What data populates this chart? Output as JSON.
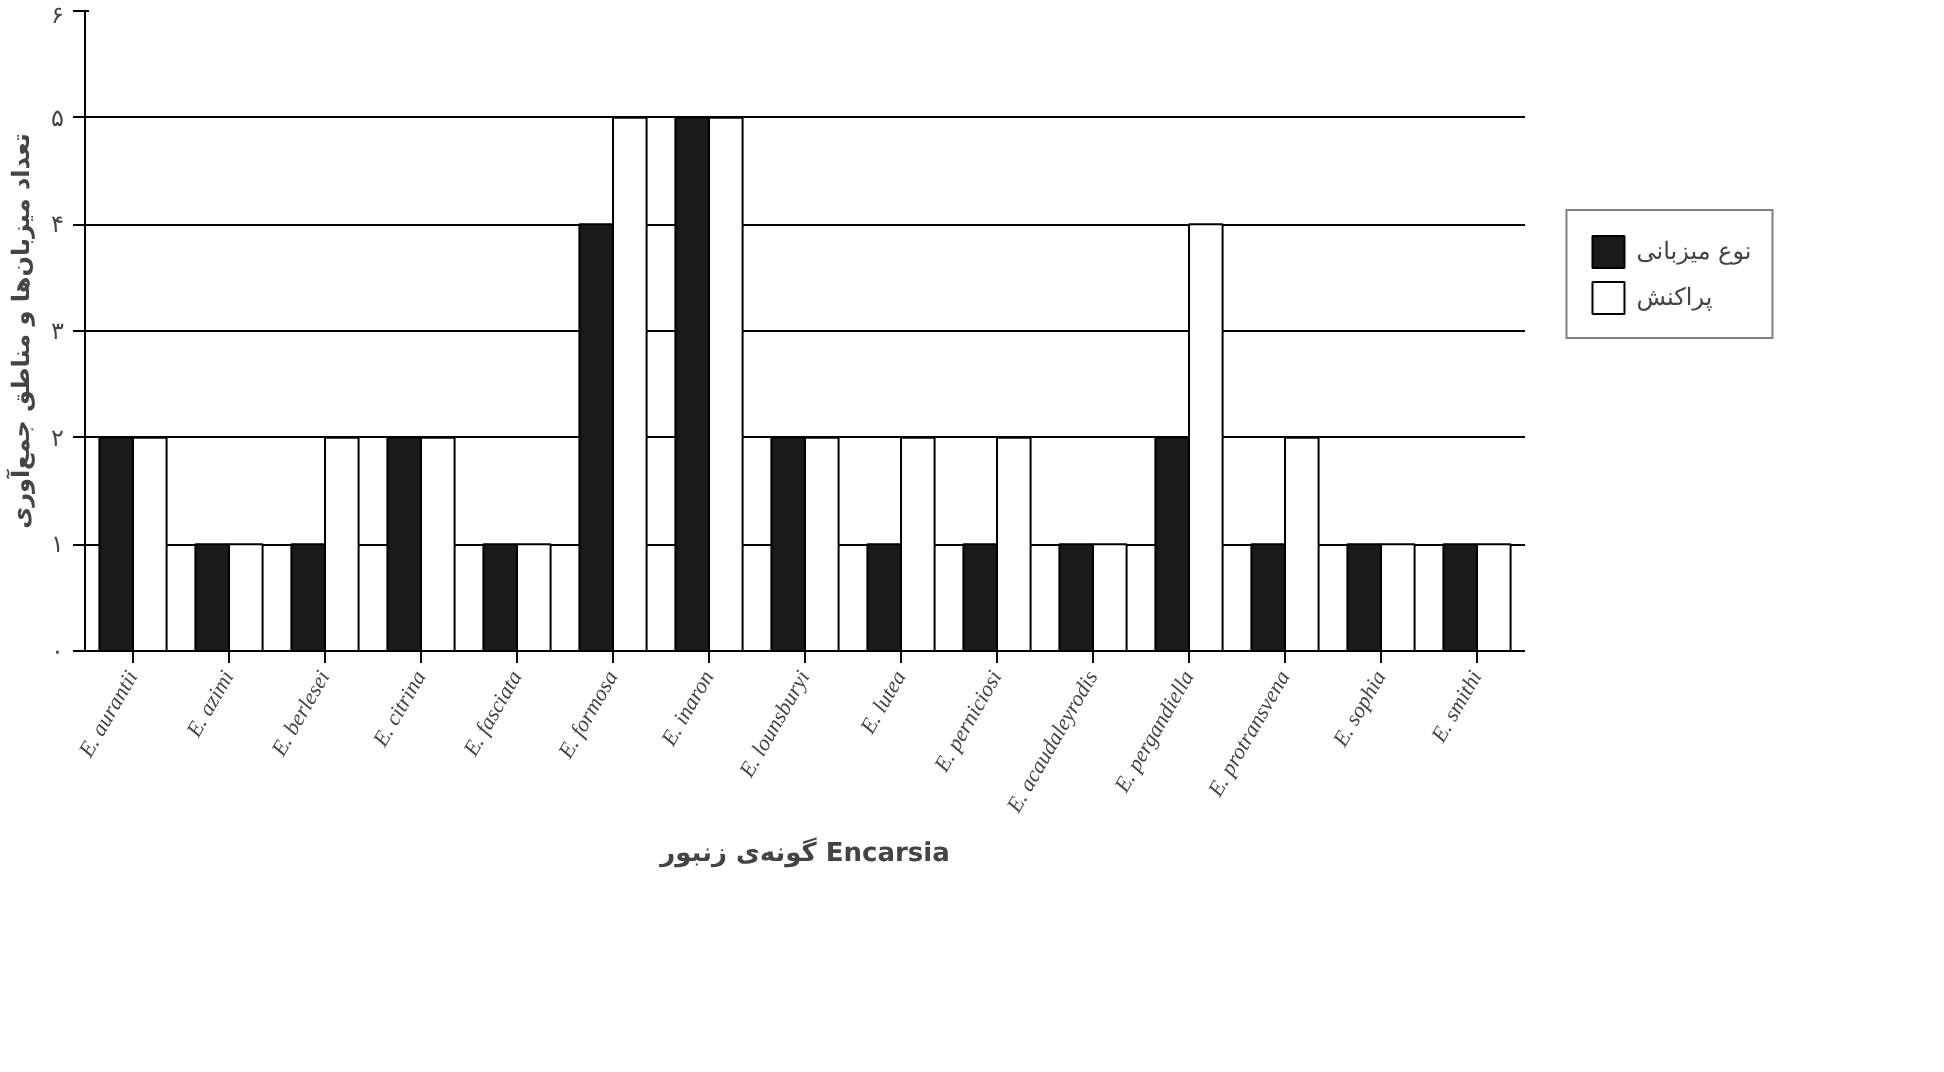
{
  "chart_data": {
    "type": "bar",
    "xlabel": "گونه‌ی زنبور Encarsia",
    "ylabel": "تعداد میزبان‌ها و مناطق جمع‌آوری",
    "categories": [
      "E. aurantii",
      "E. azimi",
      "E. berlesei",
      "E. citrina",
      "E. fasciata",
      "E. formosa",
      "E. inaron",
      "E. lounsburyi",
      "E. lutea",
      "E. perniciosi",
      "E. acaudaleyrodis",
      "E. pergandiella",
      "E. protransvena",
      "E. sophia",
      "E. smithi"
    ],
    "series": [
      {
        "name": "نوع میزبانی",
        "color": "#1a1a1a",
        "values": [
          2,
          1,
          1,
          2,
          1,
          4,
          5,
          2,
          1,
          1,
          1,
          2,
          1,
          1,
          1
        ]
      },
      {
        "name": "پراکنش",
        "color": "#ffffff",
        "values": [
          2,
          1,
          2,
          2,
          1,
          5,
          5,
          2,
          2,
          2,
          1,
          4,
          2,
          1,
          1
        ]
      }
    ],
    "ylim": [
      0,
      6
    ],
    "yticks": [
      {
        "value": 0,
        "label": "۰"
      },
      {
        "value": 1,
        "label": "۱"
      },
      {
        "value": 2,
        "label": "۲"
      },
      {
        "value": 3,
        "label": "۳"
      },
      {
        "value": 4,
        "label": "۴"
      },
      {
        "value": 5,
        "label": "۵"
      },
      {
        "value": 6,
        "label": "۶"
      }
    ],
    "grid": "y",
    "legend": "right"
  }
}
